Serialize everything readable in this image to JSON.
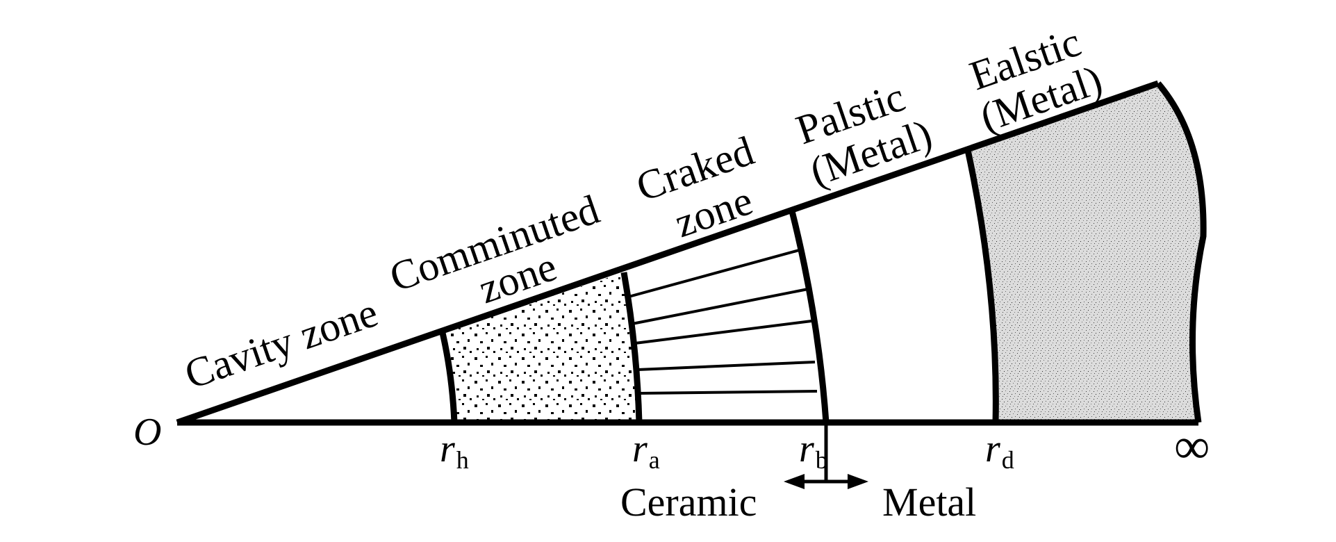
{
  "origin_label": "O",
  "infinity_label": "∞",
  "zones": {
    "cavity": "Cavity zone",
    "comminuted_line1": "Comminuted",
    "comminuted_line2": "zone",
    "cracked_line1": "Craked",
    "cracked_line2": "zone",
    "plastic_line1": "Palstic",
    "plastic_line2": "(Metal)",
    "elastic_line1": "Ealstic",
    "elastic_line2": "(Metal)"
  },
  "radii": {
    "rh": {
      "symbol": "r",
      "sub": "h"
    },
    "ra": {
      "symbol": "r",
      "sub": "a"
    },
    "rb": {
      "symbol": "r",
      "sub": "b"
    },
    "rd": {
      "symbol": "r",
      "sub": "d"
    }
  },
  "interface": {
    "left": "Ceramic",
    "right": "Metal"
  },
  "colors": {
    "line": "#000000",
    "background": "#ffffff"
  }
}
